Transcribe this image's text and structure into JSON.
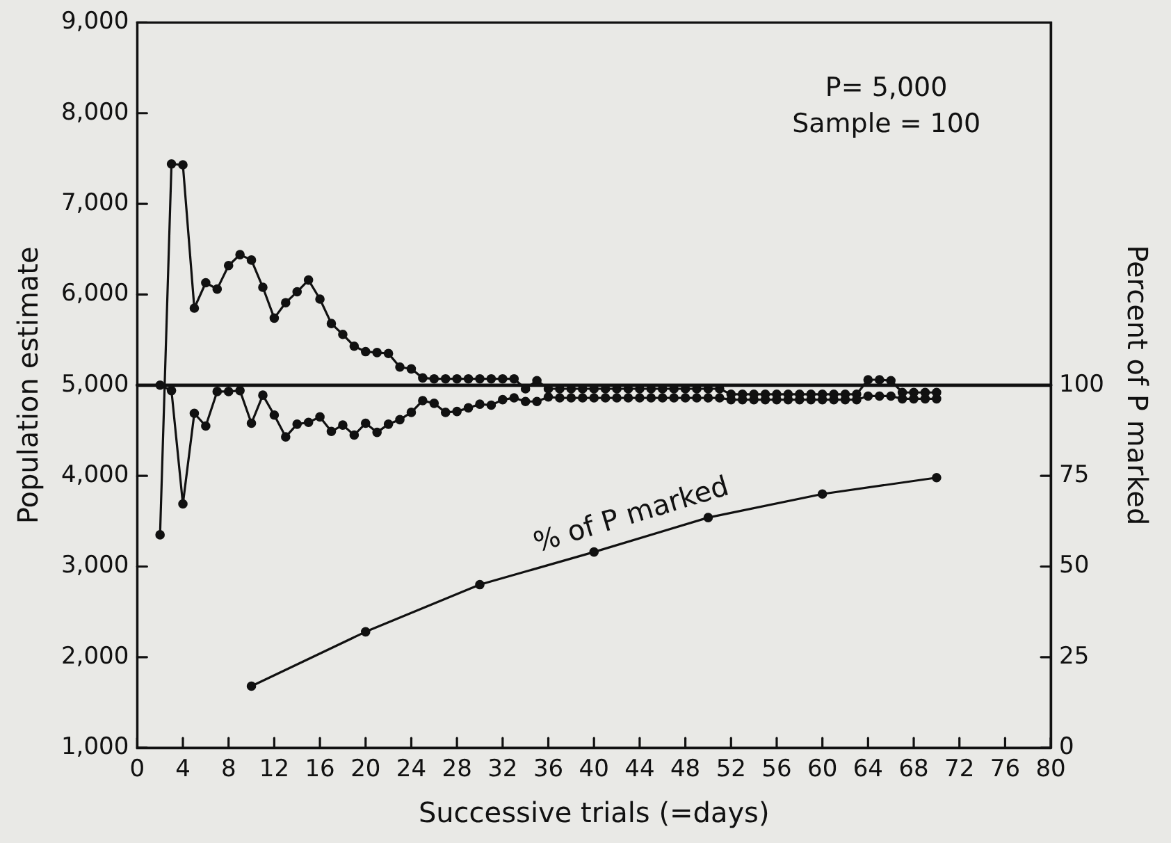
{
  "chart_data": {
    "type": "line",
    "xlabel": "Successive trials (=days)",
    "ylabel": "Population estimate",
    "y2label": "Percent of P marked",
    "xlim": [
      0,
      80
    ],
    "xticks": [
      0,
      4,
      8,
      12,
      16,
      20,
      24,
      28,
      32,
      36,
      40,
      44,
      48,
      52,
      56,
      60,
      64,
      68,
      72,
      76,
      80
    ],
    "ylim": [
      1000,
      9000
    ],
    "yticks": [
      {
        "value": 1000,
        "label": "1,000"
      },
      {
        "value": 2000,
        "label": "2,000"
      },
      {
        "value": 3000,
        "label": "3,000"
      },
      {
        "value": 4000,
        "label": "4,000"
      },
      {
        "value": 5000,
        "label": "5,000"
      },
      {
        "value": 6000,
        "label": "6,000"
      },
      {
        "value": 7000,
        "label": "7,000"
      },
      {
        "value": 8000,
        "label": "8,000"
      },
      {
        "value": 9000,
        "label": "9,000"
      }
    ],
    "y2lim": [
      0,
      200
    ],
    "y2ticks": [
      0,
      25,
      50,
      75,
      100
    ],
    "grid": false,
    "legend": false,
    "marker": "circle",
    "line_style": "solid",
    "ref_lines": [
      {
        "axis": "y",
        "value": 5000,
        "color": "#111111"
      }
    ],
    "annotations": [
      "P= 5,000",
      "Sample = 100"
    ],
    "series": [
      {
        "color": "#111111",
        "x": [
          2,
          3,
          4,
          5,
          6,
          7,
          8,
          9,
          10,
          11,
          12,
          13,
          14,
          15,
          16,
          17,
          18,
          19,
          20,
          21,
          22,
          23,
          24,
          25,
          26,
          27,
          28,
          29,
          30,
          31,
          32,
          33,
          34,
          35,
          36,
          37,
          38,
          39,
          40,
          41,
          42,
          43,
          44,
          45,
          46,
          47,
          48,
          49,
          50,
          51,
          52,
          53,
          54,
          55,
          56,
          57,
          58,
          59,
          60,
          61,
          62,
          63,
          64,
          65,
          66,
          67,
          68,
          69,
          70
        ],
        "values": [
          3350,
          7440,
          7430,
          5850,
          6130,
          6060,
          6320,
          6440,
          6380,
          6080,
          5740,
          5910,
          6030,
          6160,
          5950,
          5680,
          5560,
          5430,
          5370,
          5360,
          5350,
          5200,
          5180,
          5080,
          5070,
          5070,
          5070,
          5070,
          5070,
          5070,
          5070,
          5070,
          4960,
          5050,
          4960,
          4960,
          4960,
          4960,
          4960,
          4960,
          4960,
          4960,
          4960,
          4960,
          4960,
          4960,
          4960,
          4960,
          4960,
          4960,
          4900,
          4900,
          4900,
          4900,
          4900,
          4900,
          4900,
          4900,
          4900,
          4900,
          4900,
          4900,
          5060,
          5060,
          5050,
          4920,
          4920,
          4920,
          4920
        ]
      },
      {
        "color": "#111111",
        "x": [
          2,
          3,
          4,
          5,
          6,
          7,
          8,
          9,
          10,
          11,
          12,
          13,
          14,
          15,
          16,
          17,
          18,
          19,
          20,
          21,
          22,
          23,
          24,
          25,
          26,
          27,
          28,
          29,
          30,
          31,
          32,
          33,
          34,
          35,
          36,
          37,
          38,
          39,
          40,
          41,
          42,
          43,
          44,
          45,
          46,
          47,
          48,
          49,
          50,
          51,
          52,
          53,
          54,
          55,
          56,
          57,
          58,
          59,
          60,
          61,
          62,
          63,
          64,
          65,
          66,
          67,
          68,
          69,
          70
        ],
        "values": [
          5000,
          4940,
          3690,
          4690,
          4550,
          4930,
          4930,
          4940,
          4580,
          4890,
          4670,
          4430,
          4570,
          4590,
          4650,
          4490,
          4560,
          4450,
          4580,
          4480,
          4570,
          4620,
          4700,
          4830,
          4800,
          4700,
          4710,
          4750,
          4790,
          4780,
          4840,
          4860,
          4820,
          4820,
          4870,
          4860,
          4860,
          4860,
          4860,
          4860,
          4860,
          4860,
          4860,
          4860,
          4860,
          4860,
          4860,
          4860,
          4860,
          4860,
          4840,
          4840,
          4840,
          4840,
          4840,
          4840,
          4840,
          4840,
          4840,
          4840,
          4840,
          4840,
          4880,
          4880,
          4880,
          4850,
          4850,
          4850,
          4850
        ]
      },
      {
        "name": "% of P marked",
        "color": "#111111",
        "axis": "y2",
        "x": [
          10,
          20,
          30,
          40,
          50,
          60,
          70
        ],
        "values": [
          17,
          32,
          45,
          54,
          63.5,
          70,
          74.5
        ]
      }
    ]
  }
}
